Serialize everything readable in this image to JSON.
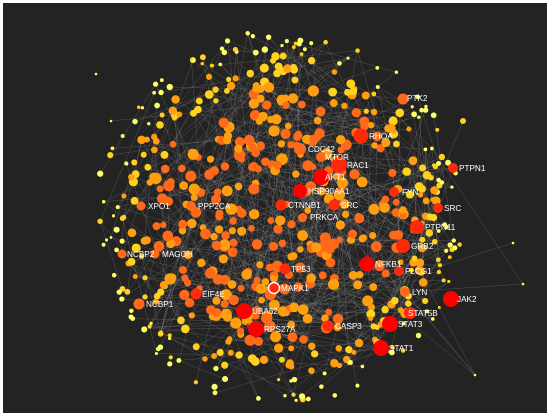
{
  "network": {
    "background_color": "#232323",
    "edge_color": "#9a9a9a",
    "node_color_scale": [
      "#ffff66",
      "#ffd21f",
      "#ff9f10",
      "#ff6a1a",
      "#ff2a0a",
      "#ff0000"
    ],
    "highlighted_node": "MAPK1",
    "hub_nodes": [
      {
        "label": "PTK2"
      },
      {
        "label": "RHOA"
      },
      {
        "label": "CDC42"
      },
      {
        "label": "MTOR"
      },
      {
        "label": "RAC1"
      },
      {
        "label": "AKT1"
      },
      {
        "label": "PTPN1"
      },
      {
        "label": "HSP90AA1"
      },
      {
        "label": "FYN"
      },
      {
        "label": "XPO1"
      },
      {
        "label": "PPP2CA"
      },
      {
        "label": "CTNNB1"
      },
      {
        "label": "SRC"
      },
      {
        "label": "SRC"
      },
      {
        "label": "PRKCA"
      },
      {
        "label": "PTPN11"
      },
      {
        "label": "GRB2"
      },
      {
        "label": "NCBP2"
      },
      {
        "label": "MAGOH"
      },
      {
        "label": "NFKB1"
      },
      {
        "label": "TP53"
      },
      {
        "label": "PLCG1"
      },
      {
        "label": "MAPK1"
      },
      {
        "label": "EIF4E"
      },
      {
        "label": "LYN"
      },
      {
        "label": "NCBP1"
      },
      {
        "label": "JAK2"
      },
      {
        "label": "UBA52"
      },
      {
        "label": "STAT5B"
      },
      {
        "label": "RPS27A"
      },
      {
        "label": "CASP3"
      },
      {
        "label": "STAT3"
      },
      {
        "label": "STAT1"
      }
    ]
  }
}
